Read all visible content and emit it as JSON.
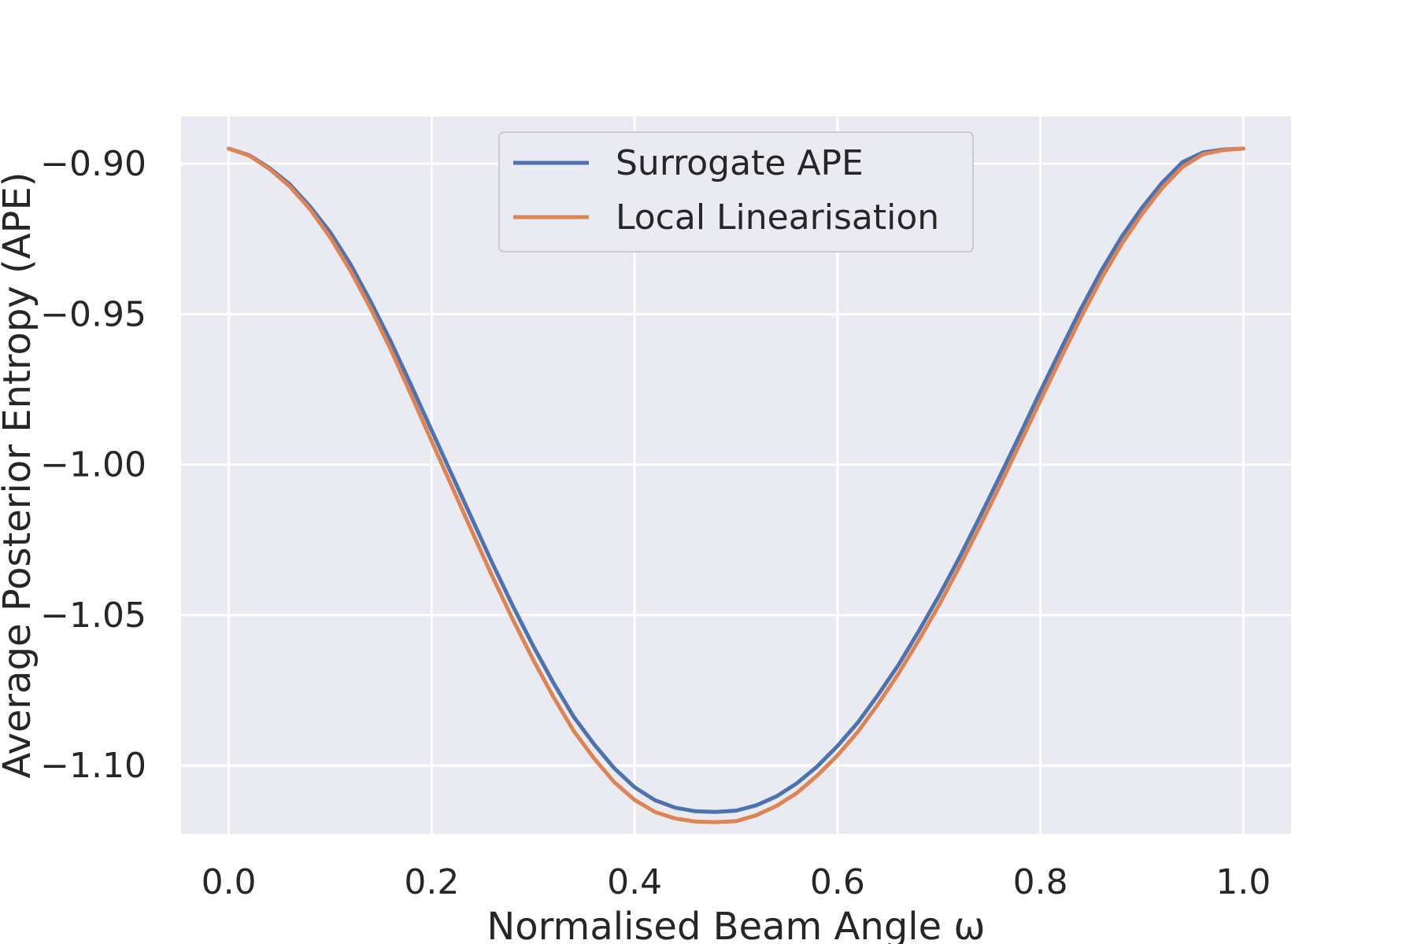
{
  "chart_data": {
    "type": "line",
    "xlabel": "Normalised Beam Angle ω",
    "ylabel": "Average Posterior Entropy (APE)",
    "xlim": [
      -0.047,
      1.047
    ],
    "ylim": [
      -1.1227,
      -0.8843
    ],
    "xticks": [
      0.0,
      0.2,
      0.4,
      0.6,
      0.8,
      1.0
    ],
    "xtick_labels": [
      "0.0",
      "0.2",
      "0.4",
      "0.6",
      "0.8",
      "1.0"
    ],
    "yticks": [
      -0.9,
      -0.95,
      -1.0,
      -1.05,
      -1.1
    ],
    "ytick_labels": [
      "−0.90",
      "−0.95",
      "−1.00",
      "−1.05",
      "−1.10"
    ],
    "grid": true,
    "legend_position": "upper center",
    "series": [
      {
        "name": "Surrogate APE",
        "color": "#4c72b0",
        "x": [
          0.0,
          0.02,
          0.04,
          0.06,
          0.08,
          0.1,
          0.12,
          0.14,
          0.16,
          0.18,
          0.2,
          0.22,
          0.24,
          0.26,
          0.28,
          0.3,
          0.32,
          0.34,
          0.36,
          0.38,
          0.4,
          0.42,
          0.44,
          0.46,
          0.48,
          0.5,
          0.52,
          0.54,
          0.56,
          0.58,
          0.6,
          0.62,
          0.64,
          0.66,
          0.68,
          0.7,
          0.72,
          0.74,
          0.76,
          0.78,
          0.8,
          0.82,
          0.84,
          0.86,
          0.88,
          0.9,
          0.92,
          0.94,
          0.96,
          0.98,
          1.0
        ],
        "y": [
          -0.895,
          -0.8972,
          -0.9014,
          -0.9068,
          -0.9142,
          -0.9228,
          -0.9334,
          -0.9459,
          -0.9593,
          -0.9738,
          -0.9886,
          -1.0034,
          -1.0182,
          -1.0329,
          -1.047,
          -1.0602,
          -1.0725,
          -1.0838,
          -1.0929,
          -1.1009,
          -1.1072,
          -1.1115,
          -1.114,
          -1.1152,
          -1.1154,
          -1.115,
          -1.1132,
          -1.1102,
          -1.1059,
          -1.1003,
          -1.0935,
          -1.0857,
          -1.0765,
          -1.0666,
          -1.0554,
          -1.0436,
          -1.031,
          -1.0176,
          -1.0039,
          -0.9899,
          -0.9756,
          -0.9618,
          -0.9482,
          -0.9356,
          -0.9243,
          -0.9147,
          -0.9063,
          -0.8995,
          -0.8963,
          -0.8953,
          -0.895
        ]
      },
      {
        "name": "Local Linearisation",
        "color": "#dd8452",
        "x": [
          0.0,
          0.02,
          0.04,
          0.06,
          0.08,
          0.1,
          0.12,
          0.14,
          0.16,
          0.18,
          0.2,
          0.22,
          0.24,
          0.26,
          0.28,
          0.3,
          0.32,
          0.34,
          0.36,
          0.38,
          0.4,
          0.42,
          0.44,
          0.46,
          0.48,
          0.5,
          0.52,
          0.54,
          0.56,
          0.58,
          0.6,
          0.62,
          0.64,
          0.66,
          0.68,
          0.7,
          0.72,
          0.74,
          0.76,
          0.78,
          0.8,
          0.82,
          0.84,
          0.86,
          0.88,
          0.9,
          0.92,
          0.94,
          0.96,
          0.98,
          1.0
        ],
        "y": [
          -0.895,
          -0.8973,
          -0.9017,
          -0.9075,
          -0.9151,
          -0.9245,
          -0.9356,
          -0.9482,
          -0.962,
          -0.977,
          -0.9922,
          -1.0073,
          -1.0224,
          -1.0373,
          -1.0515,
          -1.0648,
          -1.0772,
          -1.0885,
          -1.0976,
          -1.1055,
          -1.1114,
          -1.1154,
          -1.1176,
          -1.1186,
          -1.1188,
          -1.1185,
          -1.1165,
          -1.1134,
          -1.1091,
          -1.1033,
          -1.0966,
          -1.0888,
          -1.0796,
          -1.0695,
          -1.0584,
          -1.0467,
          -1.034,
          -1.0207,
          -1.007,
          -0.9929,
          -0.9787,
          -0.9647,
          -0.9511,
          -0.9382,
          -0.9267,
          -0.9168,
          -0.9081,
          -0.9011,
          -0.8969,
          -0.8955,
          -0.895
        ]
      }
    ]
  }
}
